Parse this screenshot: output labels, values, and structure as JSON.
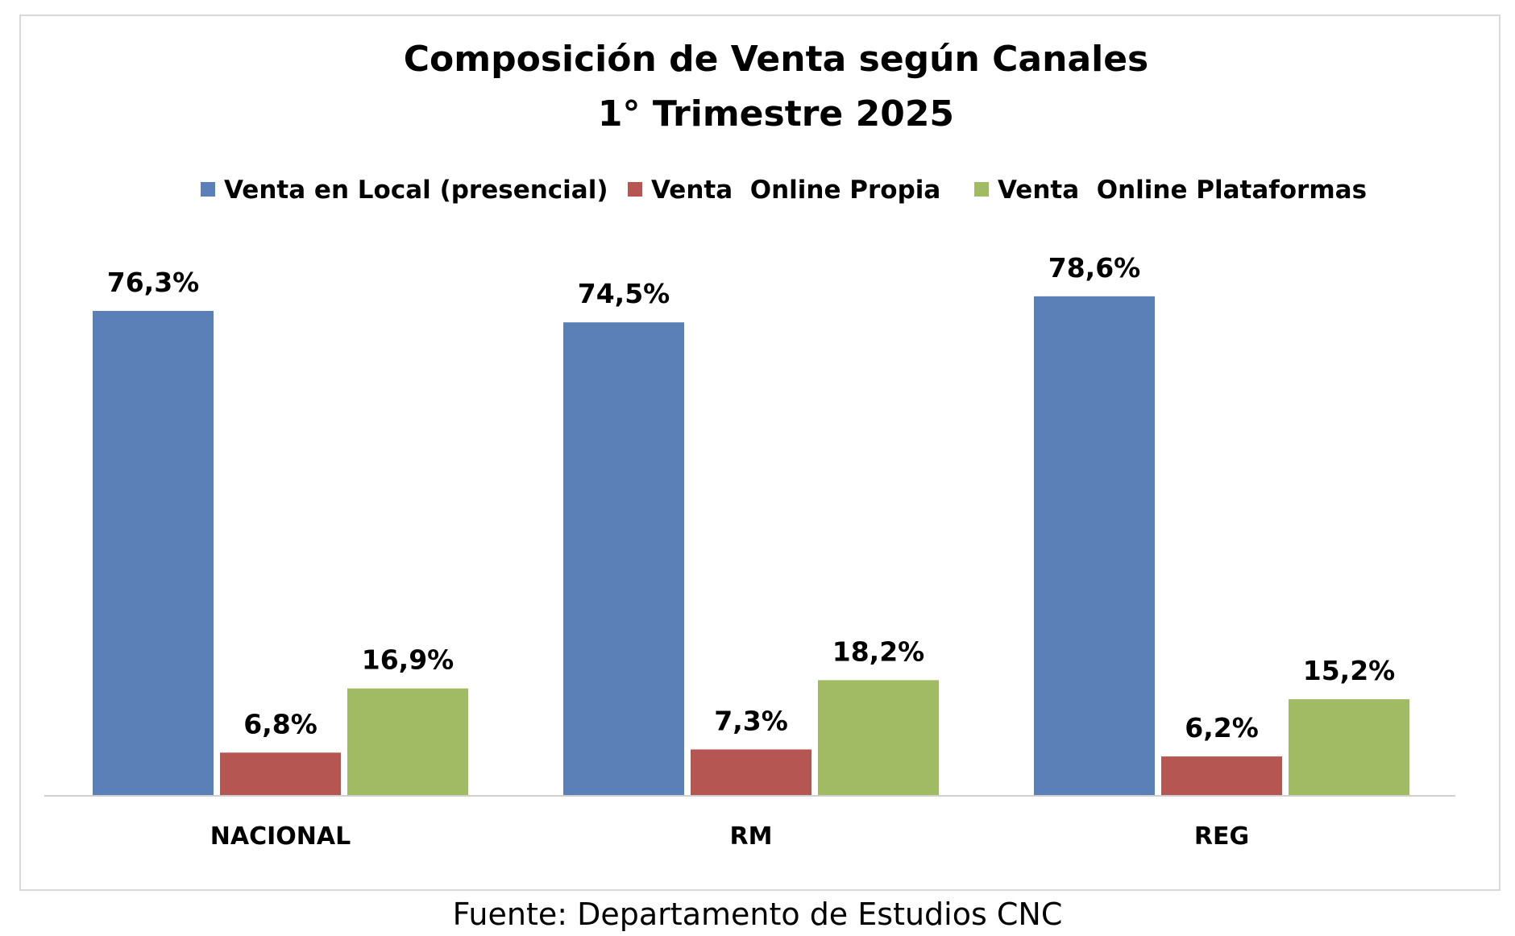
{
  "chart_data": {
    "type": "bar",
    "title": [
      "Composición de Venta según Canales",
      "1° Trimestre 2025"
    ],
    "categories": [
      "NACIONAL",
      "RM",
      "REG"
    ],
    "series": [
      {
        "name": "Venta en Local (presencial)",
        "color": "#5b80b7",
        "values": [
          76.3,
          74.5,
          78.6
        ],
        "labels": [
          "76,3%",
          "74,5%",
          "78,6%"
        ]
      },
      {
        "name": "Venta  Online Propia",
        "color": "#b55652",
        "values": [
          6.8,
          7.3,
          6.2
        ],
        "labels": [
          "6,8%",
          "7,3%",
          "6,2%"
        ]
      },
      {
        "name": "Venta  Online Plataformas",
        "color": "#a0bb64",
        "values": [
          16.9,
          18.2,
          15.2
        ],
        "labels": [
          "16,9%",
          "18,2%",
          "15,2%"
        ]
      }
    ],
    "ylim": [
      0,
      100
    ],
    "grid": false,
    "legend_position": "top"
  },
  "source": "Fuente: Departamento de Estudios CNC"
}
